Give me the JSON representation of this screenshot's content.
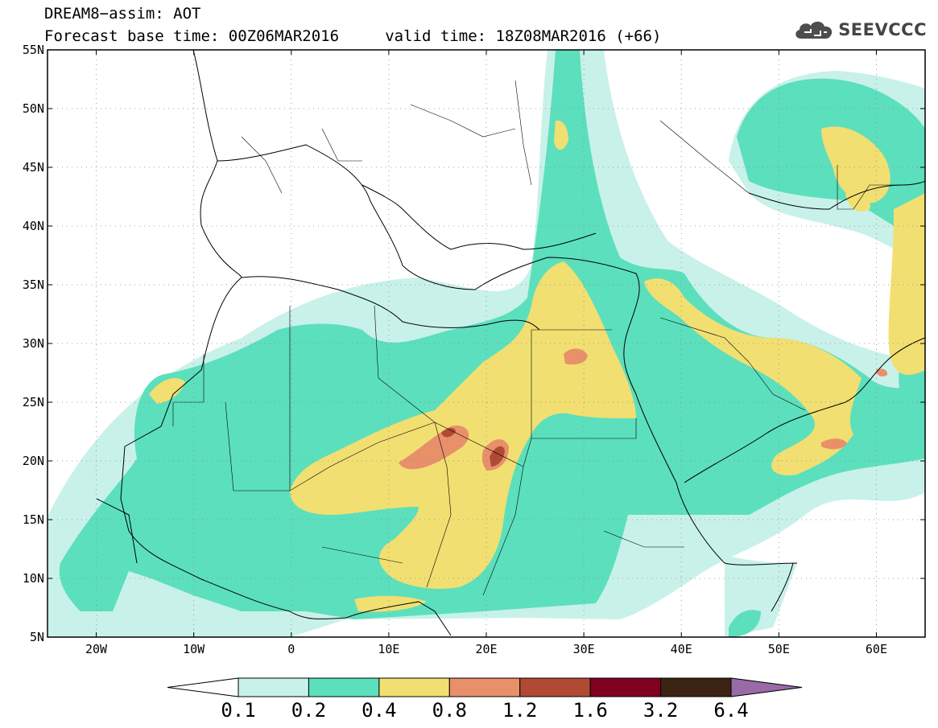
{
  "header": {
    "title_line1": "DREAM8−assim: AOT",
    "title_line2": "Forecast base time: 00Z06MAR2016     valid time: 18Z08MAR2016 (+66)"
  },
  "logo": {
    "icon": "cloud-icon",
    "text": "SEEVCCC"
  },
  "map": {
    "type": "filled-contour-map",
    "variable": "AOT",
    "lon_range": [
      -25,
      65
    ],
    "lat_range": [
      5,
      55
    ],
    "lat_ticks": [
      {
        "v": 55,
        "label": "55N"
      },
      {
        "v": 50,
        "label": "50N"
      },
      {
        "v": 45,
        "label": "45N"
      },
      {
        "v": 40,
        "label": "40N"
      },
      {
        "v": 35,
        "label": "35N"
      },
      {
        "v": 30,
        "label": "30N"
      },
      {
        "v": 25,
        "label": "25N"
      },
      {
        "v": 20,
        "label": "20N"
      },
      {
        "v": 15,
        "label": "15N"
      },
      {
        "v": 10,
        "label": "10N"
      },
      {
        "v": 5,
        "label": "5N"
      }
    ],
    "lon_ticks": [
      {
        "v": -20,
        "label": "20W"
      },
      {
        "v": -10,
        "label": "10W"
      },
      {
        "v": 0,
        "label": "0"
      },
      {
        "v": 10,
        "label": "10E"
      },
      {
        "v": 20,
        "label": "20E"
      },
      {
        "v": 30,
        "label": "30E"
      },
      {
        "v": 40,
        "label": "40E"
      },
      {
        "v": 50,
        "label": "50E"
      },
      {
        "v": 60,
        "label": "60E"
      }
    ],
    "grid": "dotted"
  },
  "colorbar": {
    "labels": [
      "0.1",
      "0.2",
      "0.4",
      "0.8",
      "1.2",
      "1.6",
      "3.2",
      "6.4"
    ],
    "colors": [
      "#c8f1ea",
      "#5cdfbd",
      "#f1df72",
      "#e8906a",
      "#b04a34",
      "#800020",
      "#3c2414"
    ],
    "under_color": "#ffffff",
    "over_color": "#9a6aa8"
  }
}
